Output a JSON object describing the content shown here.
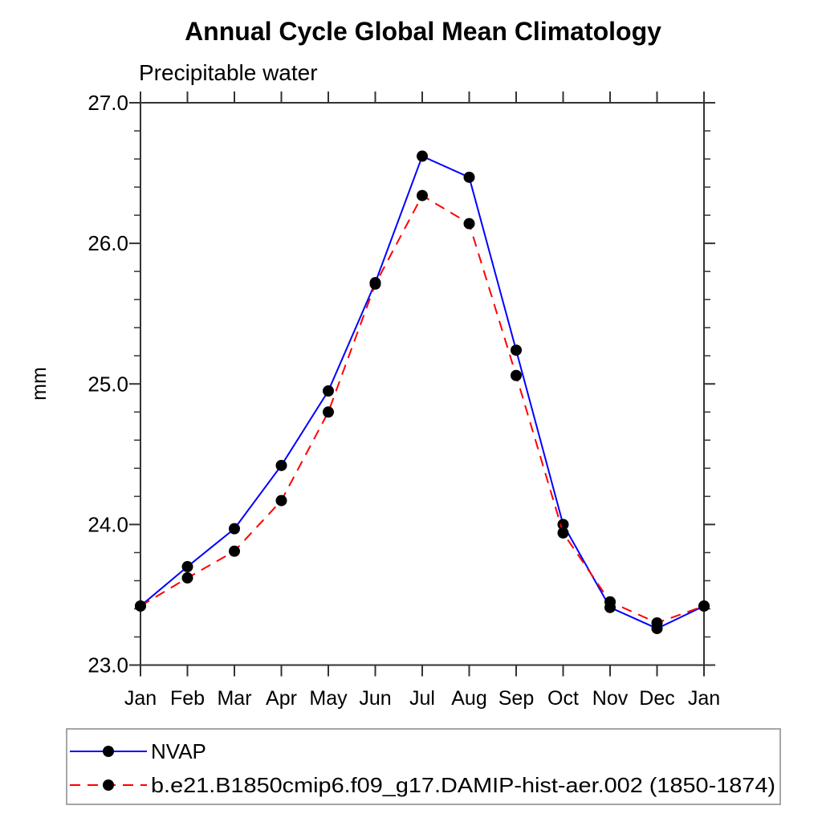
{
  "chart_data": {
    "type": "line",
    "title": "Annual Cycle Global Mean Climatology",
    "subtitle": "Precipitable water",
    "ylabel": "mm",
    "xlabel": "",
    "ylim": [
      23.0,
      27.0
    ],
    "ytick_labels": [
      "23.0",
      "24.0",
      "25.0",
      "26.0",
      "27.0"
    ],
    "ytick_values": [
      23.0,
      24.0,
      25.0,
      26.0,
      27.0
    ],
    "yminor_interval": 0.2,
    "grid": "off",
    "legend_position": "bottom-box",
    "categories": [
      "Jan",
      "Feb",
      "Mar",
      "Apr",
      "May",
      "Jun",
      "Jul",
      "Aug",
      "Sep",
      "Oct",
      "Nov",
      "Dec",
      "Jan"
    ],
    "series": [
      {
        "name": "NVAP",
        "color": "#0000ff",
        "line_style": "solid",
        "marker": "filled-black-circle",
        "values": [
          23.42,
          23.7,
          23.97,
          24.42,
          24.95,
          25.72,
          26.62,
          26.47,
          25.24,
          24.0,
          23.41,
          23.26,
          23.42
        ]
      },
      {
        "name": "b.e21.B1850cmip6.f09_g17.DAMIP-hist-aer.002 (1850-1874)",
        "color": "#ff0000",
        "line_style": "dashed",
        "marker": "filled-black-circle",
        "values": [
          23.42,
          23.62,
          23.81,
          24.17,
          24.8,
          25.71,
          26.34,
          26.14,
          25.06,
          23.94,
          23.45,
          23.3,
          23.42
        ]
      }
    ],
    "marker_color": "#000000",
    "axis_color": "#333333",
    "legend_border_color": "#888888"
  }
}
